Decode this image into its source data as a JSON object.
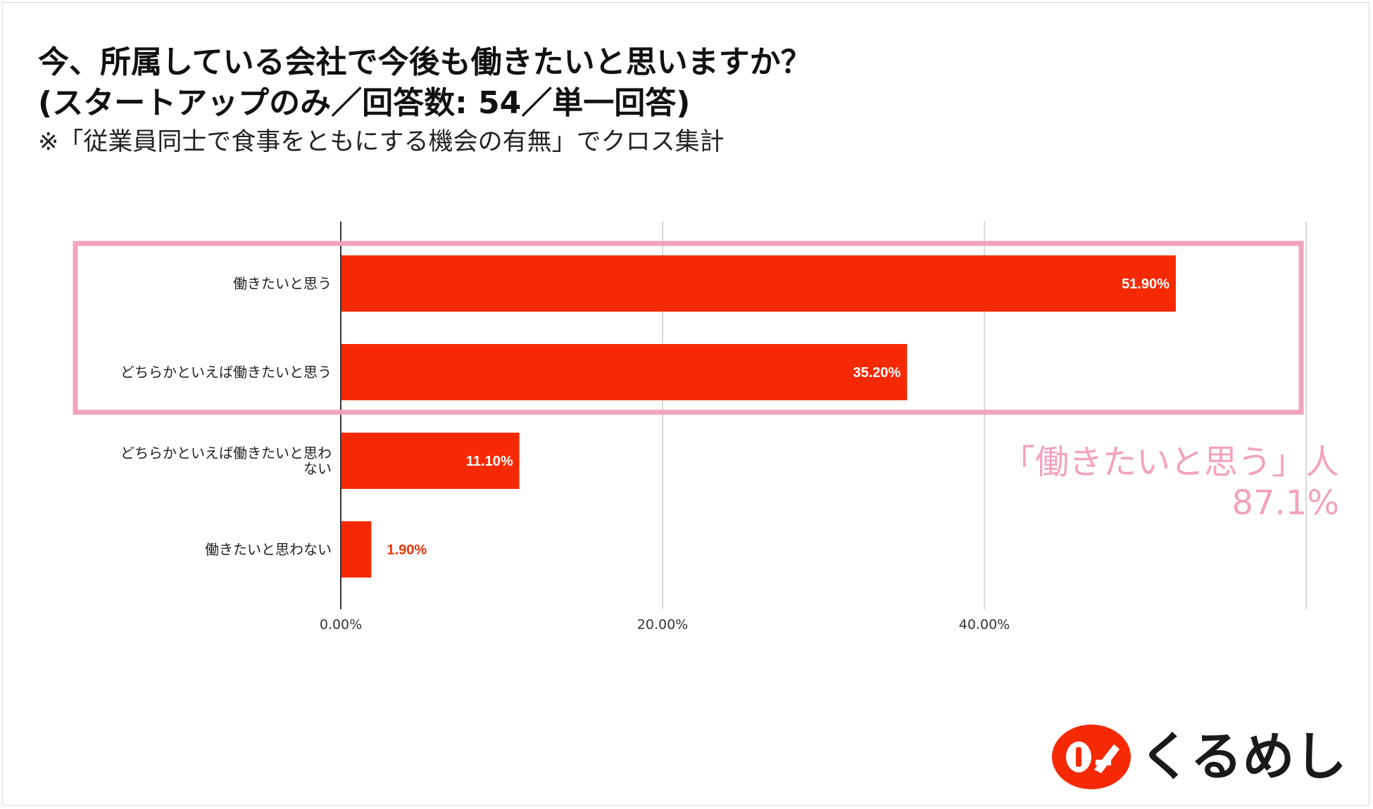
{
  "header": {
    "title_line1": "今、所属している会社で今後も働きたいと思いますか？",
    "title_line2": "(スタートアップのみ／回答数: 54／単一回答)",
    "subtitle": "※「従業員同士で食事をともにする機会の有無」でクロス集計"
  },
  "callout": {
    "text": "「働きたいと思う」人",
    "value": "87.1%"
  },
  "logo": {
    "text": "くるめし"
  },
  "colors": {
    "bar": "#f52a05",
    "highlight": "#f2a2bf",
    "grid": "#cccccc",
    "axis": "#333333",
    "bar_label_outside": "#e8380d"
  },
  "chart_data": {
    "type": "bar",
    "orientation": "horizontal",
    "categories": [
      "働きたいと思う",
      "どちらかといえば働きたいと思う",
      "どちらかといえば働きたいと思わない",
      "働きたいと思わない"
    ],
    "values": [
      51.9,
      35.2,
      11.1,
      1.9
    ],
    "value_labels": [
      "51.90%",
      "35.20%",
      "11.10%",
      "1.90%"
    ],
    "xlim": [
      0,
      60
    ],
    "xticks": [
      0,
      20,
      40,
      60
    ],
    "xtick_labels": [
      "0.00%",
      "20.00%",
      "40.00%",
      ""
    ],
    "grid": true,
    "highlighted_categories": [
      0,
      1
    ]
  }
}
